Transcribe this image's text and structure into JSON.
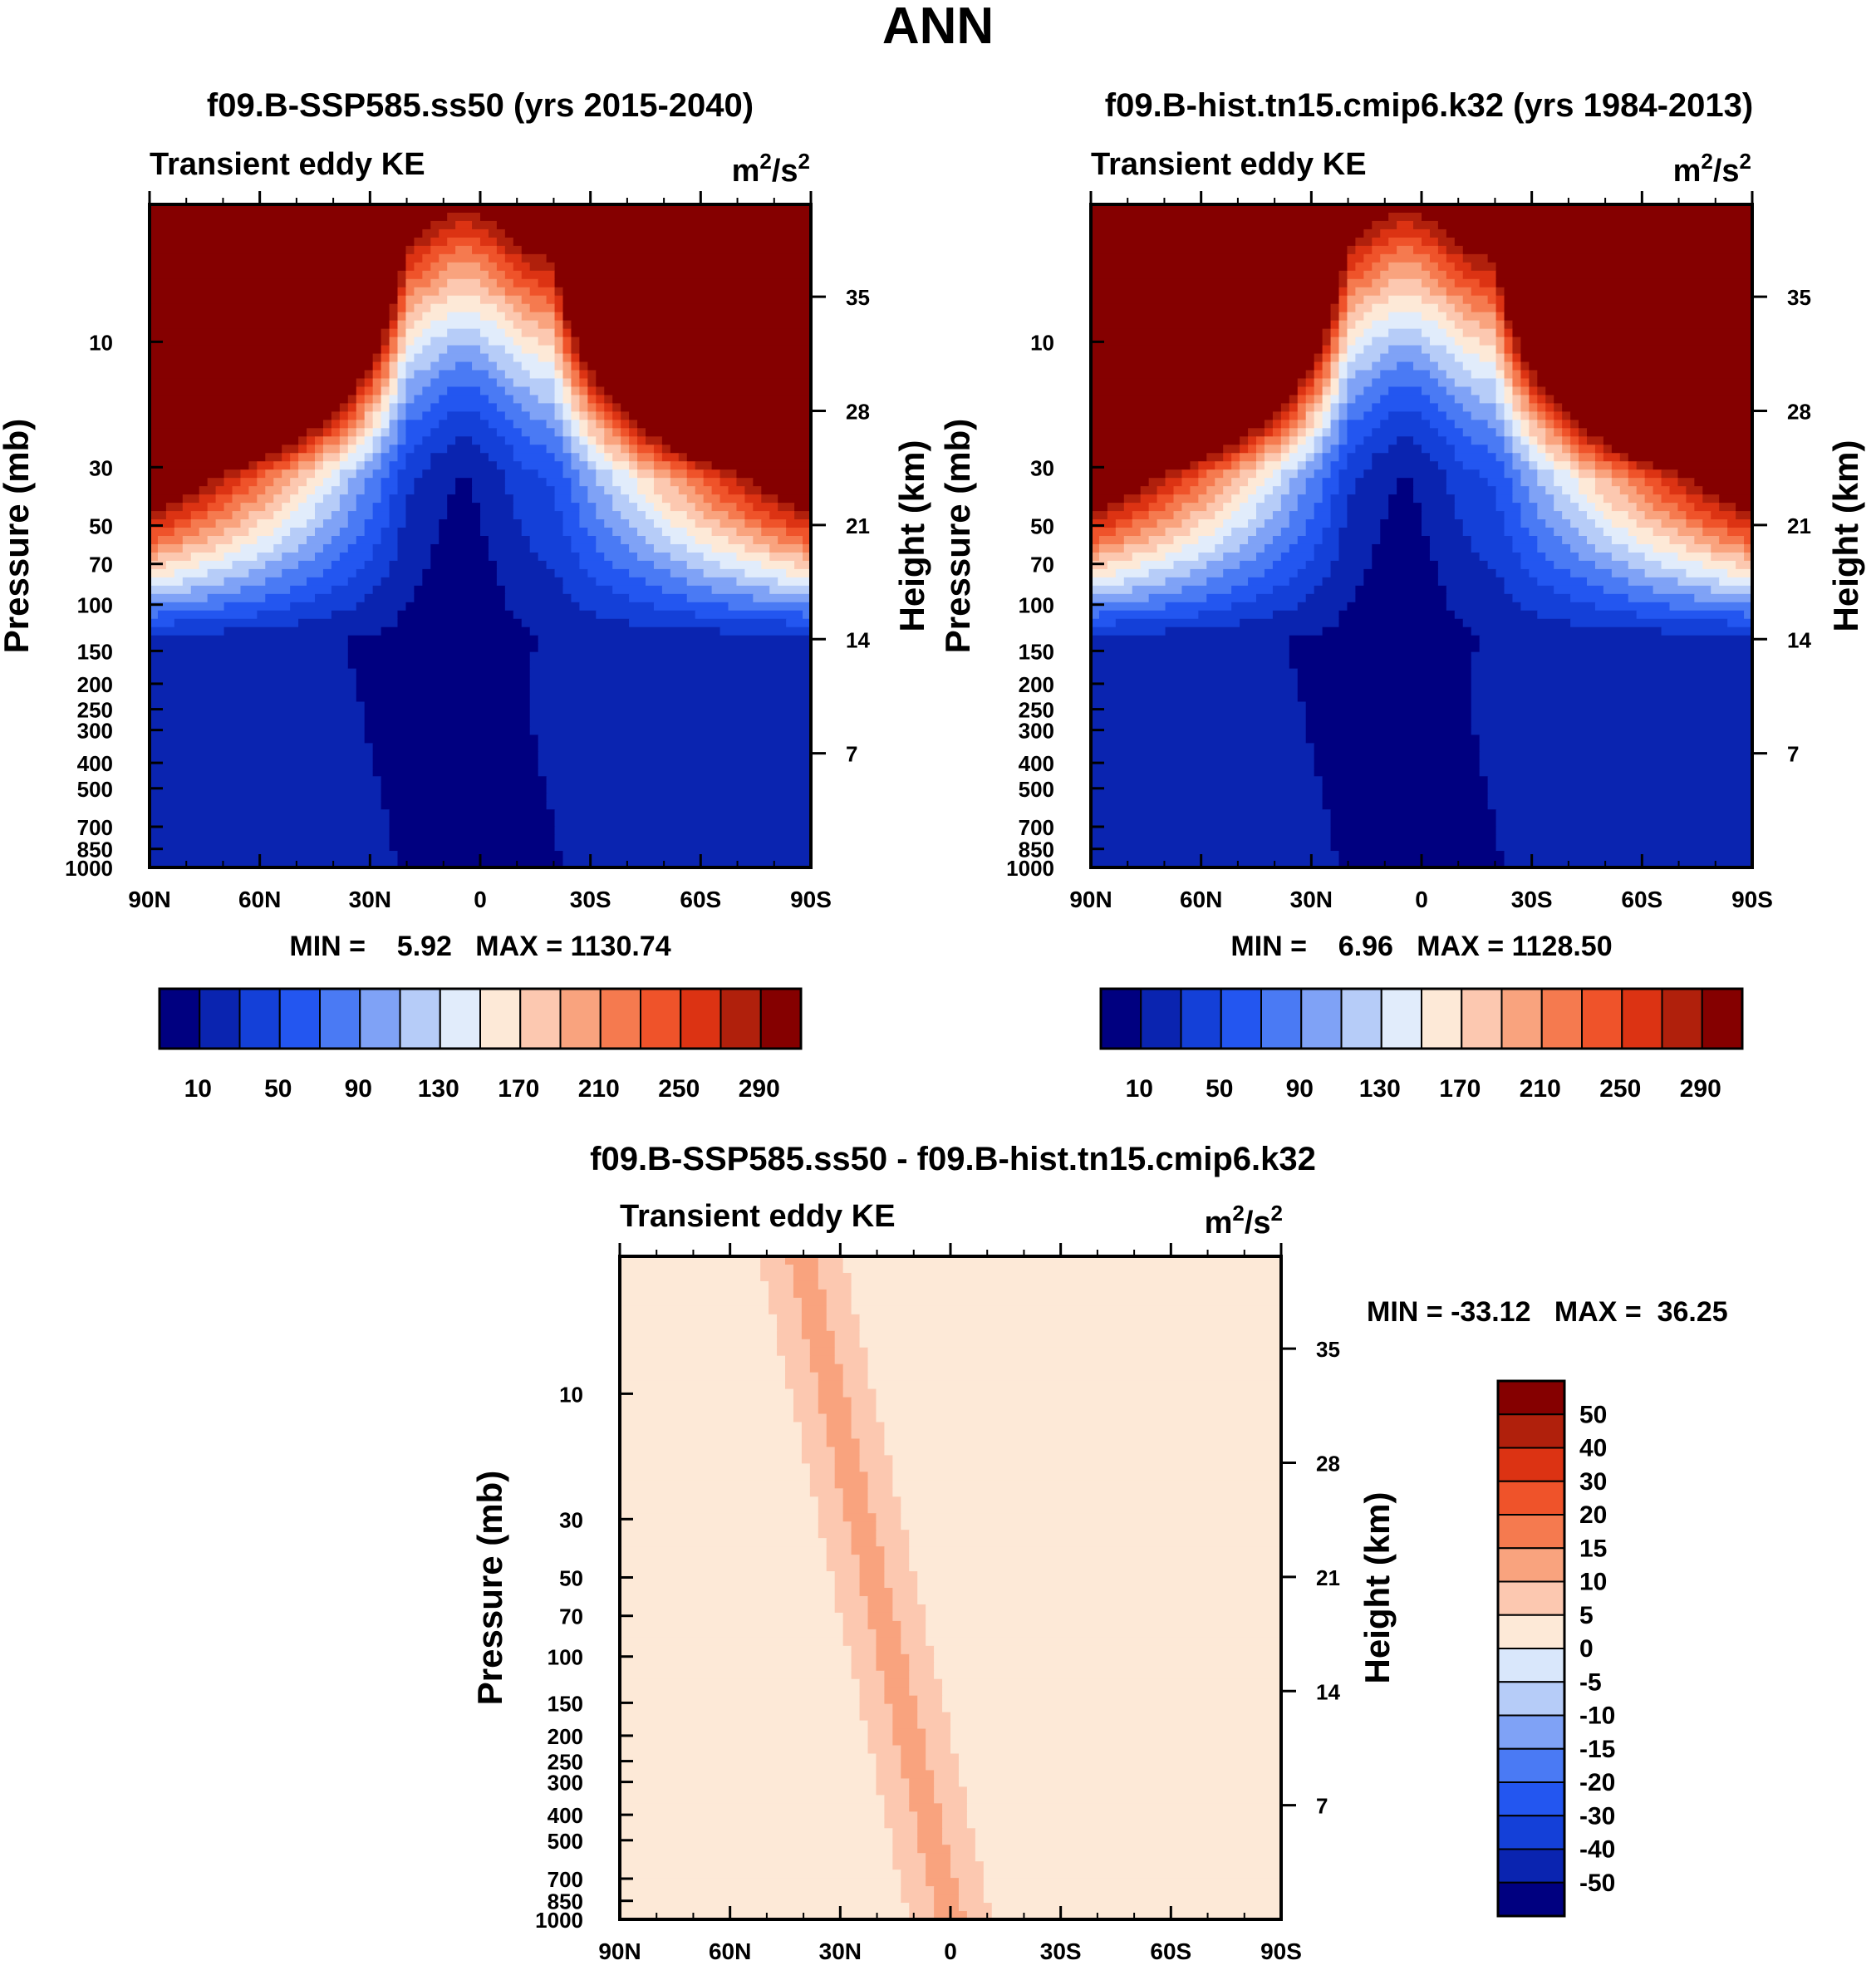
{
  "figure": {
    "title": "ANN",
    "colors": {
      "seq": [
        "#000080",
        "#0a24b0",
        "#1440d8",
        "#2356f0",
        "#4a7af4",
        "#7fa2f6",
        "#b6ccf8",
        "#e1ecfb",
        "#fde9d7",
        "#fcc8b0",
        "#f9a37e",
        "#f57a4f",
        "#ef532a",
        "#dc3313",
        "#b0200c",
        "#850000"
      ],
      "div": [
        "#000080",
        "#0a24b0",
        "#1440d8",
        "#2356f0",
        "#4a7af4",
        "#7fa2f6",
        "#b6ccf8",
        "#d9e7fb",
        "#fde9d7",
        "#fcc8b0",
        "#f9a37e",
        "#f57a4f",
        "#ef532a",
        "#dc3313",
        "#b0200c",
        "#850000"
      ]
    }
  },
  "chart_data": [
    {
      "type": "heatmap",
      "title": "f09.B-SSP585.ss50 (yrs 2015-2040)",
      "left_label": "Transient eddy KE",
      "units_html": "m<tspan baseline-shift='super' font-size='26'>2</tspan>/s<tspan baseline-shift='super' font-size='26'>2</tspan>",
      "units": "m2/s2",
      "xlabel": "",
      "ylabel": "Pressure (mb)",
      "y2label": "Height (km)",
      "xticks": [
        "90N",
        "60N",
        "30N",
        "0",
        "30S",
        "60S",
        "90S"
      ],
      "yticks": [
        "10",
        "30",
        "50",
        "70",
        "100",
        "150",
        "200",
        "250",
        "300",
        "400",
        "500",
        "700",
        "850",
        "1000"
      ],
      "ytick_values": [
        10,
        30,
        50,
        70,
        100,
        150,
        200,
        250,
        300,
        400,
        500,
        700,
        850,
        1000
      ],
      "y2ticks": [
        "35",
        "28",
        "21",
        "14",
        "7"
      ],
      "y2tick_values": [
        35,
        28,
        21,
        14,
        7
      ],
      "ylim": [
        3,
        1000
      ],
      "min_label": "MIN =    5.92   MAX = 1130.74",
      "colorbar_labels": [
        "10",
        "50",
        "90",
        "130",
        "170",
        "210",
        "250",
        "290"
      ],
      "levels": [
        10,
        30,
        50,
        70,
        90,
        110,
        130,
        150,
        170,
        190,
        210,
        230,
        250,
        270,
        290
      ],
      "jet_scale": 1.0
    },
    {
      "type": "heatmap",
      "title": "f09.B-hist.tn15.cmip6.k32 (yrs 1984-2013)",
      "left_label": "Transient eddy KE",
      "units_html": "m<tspan baseline-shift='super' font-size='26'>2</tspan>/s<tspan baseline-shift='super' font-size='26'>2</tspan>",
      "units": "m2/s2",
      "xlabel": "",
      "ylabel": "Pressure (mb)",
      "y2label": "Height (km)",
      "xticks": [
        "90N",
        "60N",
        "30N",
        "0",
        "30S",
        "60S",
        "90S"
      ],
      "yticks": [
        "10",
        "30",
        "50",
        "70",
        "100",
        "150",
        "200",
        "250",
        "300",
        "400",
        "500",
        "700",
        "850",
        "1000"
      ],
      "ytick_values": [
        10,
        30,
        50,
        70,
        100,
        150,
        200,
        250,
        300,
        400,
        500,
        700,
        850,
        1000
      ],
      "y2ticks": [
        "35",
        "28",
        "21",
        "14",
        "7"
      ],
      "y2tick_values": [
        35,
        28,
        21,
        14,
        7
      ],
      "ylim": [
        3,
        1000
      ],
      "min_label": "MIN =    6.96   MAX = 1128.50",
      "colorbar_labels": [
        "10",
        "50",
        "90",
        "130",
        "170",
        "210",
        "250",
        "290"
      ],
      "levels": [
        10,
        30,
        50,
        70,
        90,
        110,
        130,
        150,
        170,
        190,
        210,
        230,
        250,
        270,
        290
      ],
      "jet_scale": 0.97
    },
    {
      "type": "heatmap",
      "title": "f09.B-SSP585.ss50 - f09.B-hist.tn15.cmip6.k32",
      "left_label": "Transient eddy KE",
      "units_html": "m<tspan baseline-shift='super' font-size='26'>2</tspan>/s<tspan baseline-shift='super' font-size='26'>2</tspan>",
      "units": "m2/s2",
      "xlabel": "",
      "ylabel": "Pressure (mb)",
      "y2label": "Height (km)",
      "xticks": [
        "90N",
        "60N",
        "30N",
        "0",
        "30S",
        "60S",
        "90S"
      ],
      "yticks": [
        "10",
        "30",
        "50",
        "70",
        "100",
        "150",
        "200",
        "250",
        "300",
        "400",
        "500",
        "700",
        "850",
        "1000"
      ],
      "ytick_values": [
        10,
        30,
        50,
        70,
        100,
        150,
        200,
        250,
        300,
        400,
        500,
        700,
        850,
        1000
      ],
      "y2ticks": [
        "35",
        "28",
        "21",
        "14",
        "7"
      ],
      "y2tick_values": [
        35,
        28,
        21,
        14,
        7
      ],
      "ylim": [
        3,
        1000
      ],
      "min_label": "MIN = -33.12   MAX =  36.25",
      "colorbar_labels": [
        "50",
        "40",
        "30",
        "20",
        "15",
        "10",
        "5",
        "0",
        "-5",
        "-10",
        "-15",
        "-20",
        "-30",
        "-40",
        "-50"
      ],
      "levels": [
        -50,
        -40,
        -30,
        -20,
        -15,
        -10,
        -5,
        0,
        5,
        10,
        15,
        20,
        30,
        40,
        50
      ]
    }
  ]
}
